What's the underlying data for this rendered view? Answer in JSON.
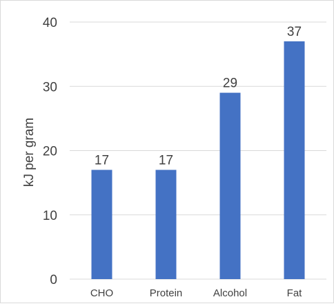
{
  "chart_data": {
    "type": "bar",
    "categories": [
      "CHO",
      "Protein",
      "Alcohol",
      "Fat"
    ],
    "values": [
      17,
      17,
      29,
      37
    ],
    "data_labels": [
      "17",
      "17",
      "29",
      "37"
    ],
    "title": "",
    "xlabel": "",
    "ylabel": "kJ per gram",
    "ylim": [
      0,
      40
    ],
    "yticks": [
      0,
      10,
      20,
      30,
      40
    ],
    "ytick_labels": [
      "0",
      "10",
      "20",
      "30",
      "40"
    ],
    "grid": "horizontal",
    "legend": "none",
    "bar_color": "#4472C4",
    "grid_color": "#d9d9d9"
  }
}
